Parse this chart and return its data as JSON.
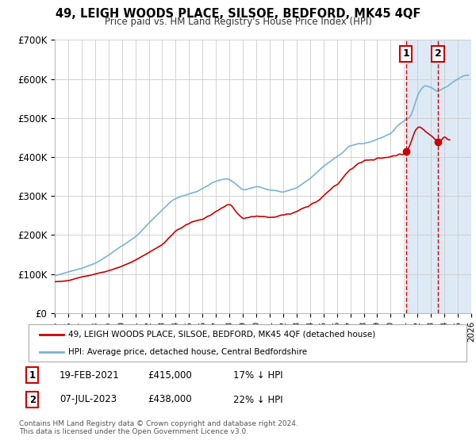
{
  "title": "49, LEIGH WOODS PLACE, SILSOE, BEDFORD, MK45 4QF",
  "subtitle": "Price paid vs. HM Land Registry's House Price Index (HPI)",
  "ylim": [
    0,
    700000
  ],
  "xlim": [
    1995,
    2026
  ],
  "yticks": [
    0,
    100000,
    200000,
    300000,
    400000,
    500000,
    600000,
    700000
  ],
  "ytick_labels": [
    "£0",
    "£100K",
    "£200K",
    "£300K",
    "£400K",
    "£500K",
    "£600K",
    "£700K"
  ],
  "xticks": [
    1995,
    1996,
    1997,
    1998,
    1999,
    2000,
    2001,
    2002,
    2003,
    2004,
    2005,
    2006,
    2007,
    2008,
    2009,
    2010,
    2011,
    2012,
    2013,
    2014,
    2015,
    2016,
    2017,
    2018,
    2019,
    2020,
    2021,
    2022,
    2023,
    2024,
    2025,
    2026
  ],
  "sale1_date": 2021.13,
  "sale1_price": 415000,
  "sale2_date": 2023.52,
  "sale2_price": 438000,
  "sale1_date_str": "19-FEB-2021",
  "sale1_price_str": "£415,000",
  "sale1_hpi_str": "17% ↓ HPI",
  "sale2_date_str": "07-JUL-2023",
  "sale2_price_str": "£438,000",
  "sale2_hpi_str": "22% ↓ HPI",
  "legend_property": "49, LEIGH WOODS PLACE, SILSOE, BEDFORD, MK45 4QF (detached house)",
  "legend_hpi": "HPI: Average price, detached house, Central Bedfordshire",
  "footer1": "Contains HM Land Registry data © Crown copyright and database right 2024.",
  "footer2": "This data is licensed under the Open Government Licence v3.0.",
  "line_color_property": "#cc0000",
  "line_color_hpi": "#7ab3d4",
  "shade_color": "#ddeaf5",
  "grid_color": "#cccccc",
  "sale_dot_color": "#cc0000",
  "label_box_color": "#cc0000"
}
